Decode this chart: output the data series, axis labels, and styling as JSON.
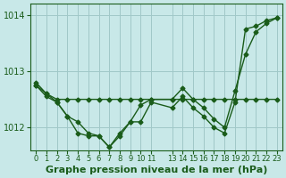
{
  "background_color": "#c8e8e8",
  "grid_color": "#a0c8c8",
  "line_color": "#1a5c1a",
  "marker_color": "#1a5c1a",
  "xlabel": "Graphe pression niveau de la mer (hPa)",
  "xlabel_fontsize": 8,
  "ylabel_fontsize": 7,
  "ylim": [
    1011.6,
    1014.2
  ],
  "yticks": [
    1012,
    1013,
    1014
  ],
  "xlim": [
    -0.5,
    23.5
  ],
  "xtick_positions": [
    0,
    1,
    2,
    3,
    4,
    5,
    6,
    7,
    8,
    9,
    10,
    11,
    13,
    14,
    15,
    16,
    17,
    18,
    19,
    20,
    21,
    22,
    23
  ],
  "xtick_labels": [
    "0",
    "1",
    "2",
    "3",
    "4",
    "5",
    "6",
    "7",
    "8",
    "9",
    "10",
    "11",
    "13",
    "14",
    "15",
    "16",
    "17",
    "18",
    "19",
    "20",
    "21",
    "22",
    "23"
  ],
  "series1_x": [
    0,
    1,
    2,
    3,
    4,
    5,
    6,
    7,
    8,
    9,
    10,
    11,
    13,
    14,
    15,
    16,
    17,
    18,
    19,
    20,
    21,
    22,
    23
  ],
  "series1_y": [
    1012.75,
    1012.6,
    1012.5,
    1012.5,
    1012.5,
    1012.5,
    1012.5,
    1012.5,
    1012.5,
    1012.5,
    1012.5,
    1012.5,
    1012.5,
    1012.5,
    1012.5,
    1012.5,
    1012.5,
    1012.5,
    1012.5,
    1012.5,
    1012.5,
    1012.5,
    1012.5
  ],
  "series2_x": [
    0,
    1,
    2,
    3,
    4,
    5,
    6,
    7,
    8,
    9,
    10,
    11,
    13,
    14,
    15,
    16,
    17,
    18,
    19,
    20,
    21,
    22,
    23
  ],
  "series2_y": [
    1012.8,
    1012.6,
    1012.45,
    1012.2,
    1011.9,
    1011.85,
    1011.85,
    1011.65,
    1011.85,
    1012.1,
    1012.1,
    1012.45,
    1012.35,
    1012.55,
    1012.35,
    1012.2,
    1012.0,
    1011.9,
    1012.45,
    1013.75,
    1013.8,
    1013.9,
    1013.95
  ],
  "series3_x": [
    0,
    1,
    2,
    3,
    4,
    5,
    6,
    7,
    8,
    9,
    10,
    11,
    13,
    14,
    15,
    16,
    17,
    18,
    19,
    20,
    21,
    22,
    23
  ],
  "series3_y": [
    1012.75,
    1012.55,
    1012.45,
    1012.2,
    1012.1,
    1011.9,
    1011.85,
    1011.65,
    1011.9,
    1012.1,
    1012.4,
    1012.5,
    1012.5,
    1012.7,
    1012.5,
    1012.35,
    1012.15,
    1012.0,
    1012.65,
    1013.3,
    1013.7,
    1013.85,
    1013.95
  ]
}
